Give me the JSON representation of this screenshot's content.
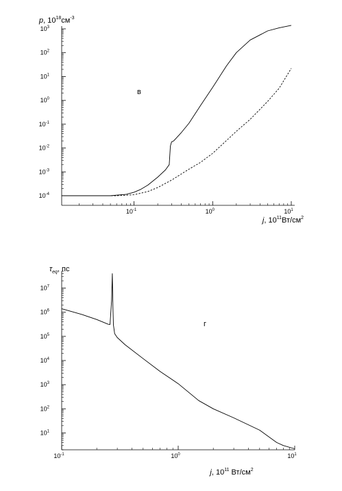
{
  "chart_data": [
    {
      "type": "line",
      "panel_label": "в",
      "xlabel": {
        "var": "j",
        "text": ", 10",
        "sup": "11",
        "unit": "Вт/см",
        "unit_sup": "2"
      },
      "ylabel": {
        "var": "p",
        "text": ", 10",
        "sup": "18",
        "unit": "см",
        "unit_sup": "-3"
      },
      "x_scale": "log",
      "y_scale": "log",
      "xlim": [
        0.012,
        10
      ],
      "ylim": [
        0.0001,
        1000
      ],
      "x_ticks": [
        {
          "value": 0.1,
          "base": "10",
          "exp": "-1"
        },
        {
          "value": 1,
          "base": "10",
          "exp": "0"
        },
        {
          "value": 10,
          "base": "10",
          "exp": "1"
        }
      ],
      "y_ticks": [
        {
          "value": 0.0001,
          "base": "10",
          "exp": "-4"
        },
        {
          "value": 0.001,
          "base": "10",
          "exp": "-3"
        },
        {
          "value": 0.01,
          "base": "10",
          "exp": "-2"
        },
        {
          "value": 0.1,
          "base": "10",
          "exp": "-1"
        },
        {
          "value": 1,
          "base": "10",
          "exp": "0"
        },
        {
          "value": 10,
          "base": "10",
          "exp": "1"
        },
        {
          "value": 100,
          "base": "10",
          "exp": "2"
        },
        {
          "value": 1000,
          "base": "10",
          "exp": "3"
        }
      ],
      "grid": false,
      "series": [
        {
          "style": "solid",
          "x": [
            0.012,
            0.05,
            0.08,
            0.1,
            0.12,
            0.15,
            0.2,
            0.25,
            0.28,
            0.29,
            0.3,
            0.32,
            0.4,
            0.5,
            0.7,
            1.0,
            1.5,
            2.0,
            3.0,
            5.0,
            7.0,
            10.0
          ],
          "y": [
            0.0001,
            0.0001,
            0.000115,
            0.00014,
            0.00018,
            0.00028,
            0.0006,
            0.0012,
            0.002,
            0.012,
            0.018,
            0.02,
            0.045,
            0.11,
            0.6,
            3.5,
            28,
            100,
            340,
            820,
            1100,
            1400
          ]
        },
        {
          "style": "dashed",
          "x": [
            0.012,
            0.06,
            0.1,
            0.15,
            0.2,
            0.3,
            0.5,
            0.7,
            1.0,
            2.0,
            3.0,
            5.0,
            7.0,
            10.0
          ],
          "y": [
            0.0001,
            0.0001,
            0.00011,
            0.00015,
            0.00022,
            0.00045,
            0.0013,
            0.0025,
            0.006,
            0.05,
            0.16,
            0.9,
            3.2,
            22
          ]
        }
      ]
    },
    {
      "type": "line",
      "panel_label": "г",
      "xlabel": {
        "var": "j",
        "text": ", 10",
        "sup": "11",
        "unit": " Вт/см",
        "unit_sup": "2"
      },
      "ylabel": {
        "var": "τ",
        "sub": "eq",
        "text": ", пс",
        "sup": "",
        "unit": "",
        "unit_sup": ""
      },
      "x_scale": "log",
      "y_scale": "log",
      "xlim": [
        0.1,
        10
      ],
      "ylim": [
        2,
        50000000
      ],
      "x_ticks": [
        {
          "value": 0.1,
          "base": "10",
          "exp": "-1"
        },
        {
          "value": 1,
          "base": "10",
          "exp": "0"
        },
        {
          "value": 10,
          "base": "10",
          "exp": "1"
        }
      ],
      "y_ticks": [
        {
          "value": 10,
          "base": "10",
          "exp": "1"
        },
        {
          "value": 100,
          "base": "10",
          "exp": "2"
        },
        {
          "value": 1000,
          "base": "10",
          "exp": "3"
        },
        {
          "value": 10000,
          "base": "10",
          "exp": "4"
        },
        {
          "value": 100000,
          "base": "10",
          "exp": "5"
        },
        {
          "value": 1000000,
          "base": "10",
          "exp": "6"
        },
        {
          "value": 10000000,
          "base": "10",
          "exp": "7"
        }
      ],
      "grid": false,
      "series": [
        {
          "style": "solid",
          "x": [
            0.1,
            0.15,
            0.2,
            0.25,
            0.26,
            0.268,
            0.272,
            0.275,
            0.278,
            0.285,
            0.3,
            0.35,
            0.5,
            0.7,
            1.0,
            1.5,
            2.0,
            3.0,
            5.0,
            7.0,
            8.0,
            10.0
          ],
          "y": [
            1400000,
            800000,
            500000,
            320000,
            310000,
            3000000,
            40000000,
            2000000,
            300000,
            130000,
            90000,
            45000,
            12000,
            3500,
            1100,
            220,
            100,
            42,
            13,
            4,
            3,
            2.2
          ]
        }
      ]
    }
  ]
}
